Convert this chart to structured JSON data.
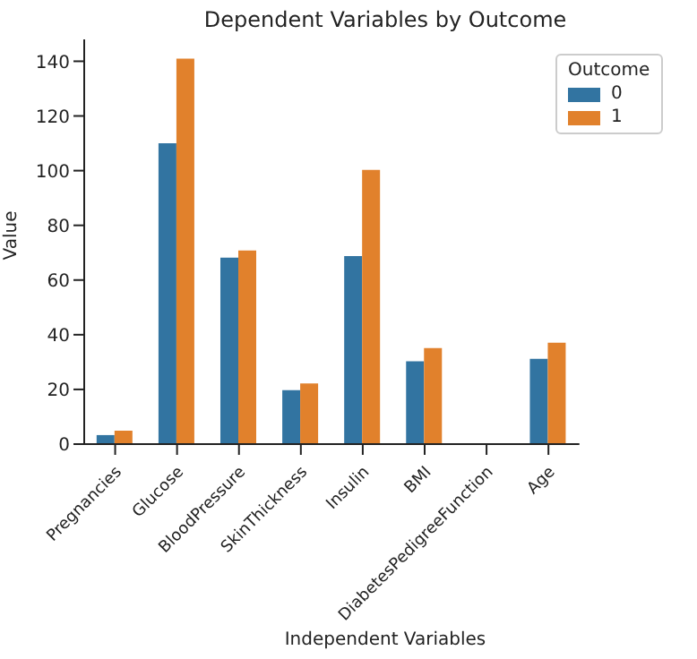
{
  "chart_data": {
    "type": "bar",
    "title": "Dependent Variables by Outcome",
    "xlabel": "Independent Variables",
    "ylabel": "Value",
    "legend_title": "Outcome",
    "legend": "top right",
    "categories": [
      "Pregnancies",
      "Glucose",
      "BloodPressure",
      "SkinThickness",
      "Insulin",
      "BMI",
      "DiabetesPedigreeFunction",
      "Age"
    ],
    "series": [
      {
        "name": "0",
        "color": "#3274a1",
        "values": [
          3.3,
          110,
          68.2,
          19.7,
          68.8,
          30.3,
          null,
          31.2
        ]
      },
      {
        "name": "1",
        "color": "#e1812c",
        "values": [
          4.9,
          141,
          70.8,
          22.2,
          100.3,
          35.1,
          null,
          37.1
        ]
      }
    ],
    "ylim": [
      0,
      148
    ],
    "yticks": [
      0,
      20,
      40,
      60,
      80,
      100,
      120,
      140
    ]
  }
}
